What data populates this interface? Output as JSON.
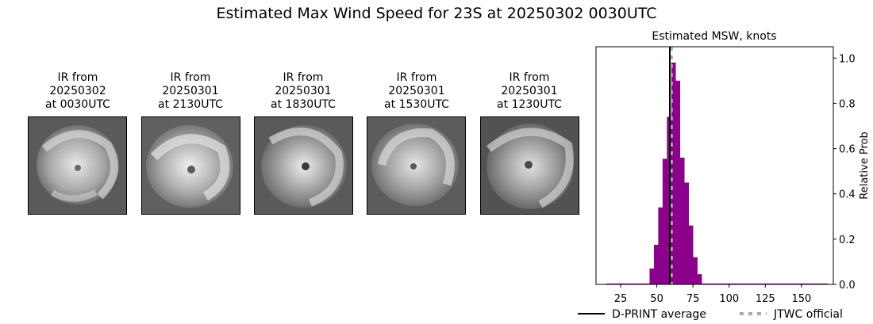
{
  "suptitle": "Estimated Max Wind Speed for 23S at 20250302 0030UTC",
  "ir_panels": [
    {
      "line1": "IR from",
      "line2": "20250302",
      "line3": "at 0030UTC"
    },
    {
      "line1": "IR from",
      "line2": "20250301",
      "line3": "at 2130UTC"
    },
    {
      "line1": "IR from",
      "line2": "20250301",
      "line3": "at 1830UTC"
    },
    {
      "line1": "IR from",
      "line2": "20250301",
      "line3": "at 1530UTC"
    },
    {
      "line1": "IR from",
      "line2": "20250301",
      "line3": "at 1230UTC"
    }
  ],
  "chart_data": {
    "type": "bar",
    "title": "Estimated MSW, knots",
    "xlabel": "",
    "ylabel": "Relative Prob",
    "xlim": [
      8,
      172
    ],
    "ylim": [
      0,
      1.05
    ],
    "xticks": [
      25,
      50,
      75,
      100,
      125,
      150
    ],
    "yticks": [
      0.0,
      0.2,
      0.4,
      0.6,
      0.8,
      1.0
    ],
    "ytick_side": "right",
    "bin_width": 3,
    "bin_starts": [
      15,
      18,
      21,
      24,
      27,
      30,
      33,
      36,
      39,
      42,
      45,
      48,
      51,
      54,
      57,
      60,
      63,
      66,
      69,
      72,
      75,
      78,
      81,
      84,
      87,
      90,
      93,
      96,
      99,
      102,
      105,
      108,
      111,
      114,
      117,
      120,
      123,
      126,
      129,
      132,
      135,
      138,
      141,
      144,
      147,
      150,
      153,
      156,
      159,
      162,
      165
    ],
    "values": [
      0.004,
      0.004,
      0.004,
      0.004,
      0.004,
      0.004,
      0.004,
      0.004,
      0.004,
      0.004,
      0.07,
      0.175,
      0.34,
      0.555,
      0.74,
      0.98,
      0.9,
      0.56,
      0.45,
      0.26,
      0.12,
      0.045,
      0.004,
      0.004,
      0.004,
      0.004,
      0.004,
      0.004,
      0.004,
      0.004,
      0.004,
      0.004,
      0.004,
      0.004,
      0.004,
      0.004,
      0.004,
      0.004,
      0.004,
      0.004,
      0.004,
      0.004,
      0.004,
      0.004,
      0.004,
      0.004,
      0.004,
      0.004,
      0.004,
      0.004,
      0.004
    ],
    "bar_color": "#8b008b",
    "dprint_average": 59,
    "jtwc_official": 60,
    "legend": [
      {
        "label": "D-PRINT average",
        "style": "solid",
        "color": "#000000"
      },
      {
        "label": "JTWC official",
        "style": "dashed",
        "color": "#aaaaaa"
      }
    ],
    "legend_placement": "bottom",
    "grid": false
  }
}
